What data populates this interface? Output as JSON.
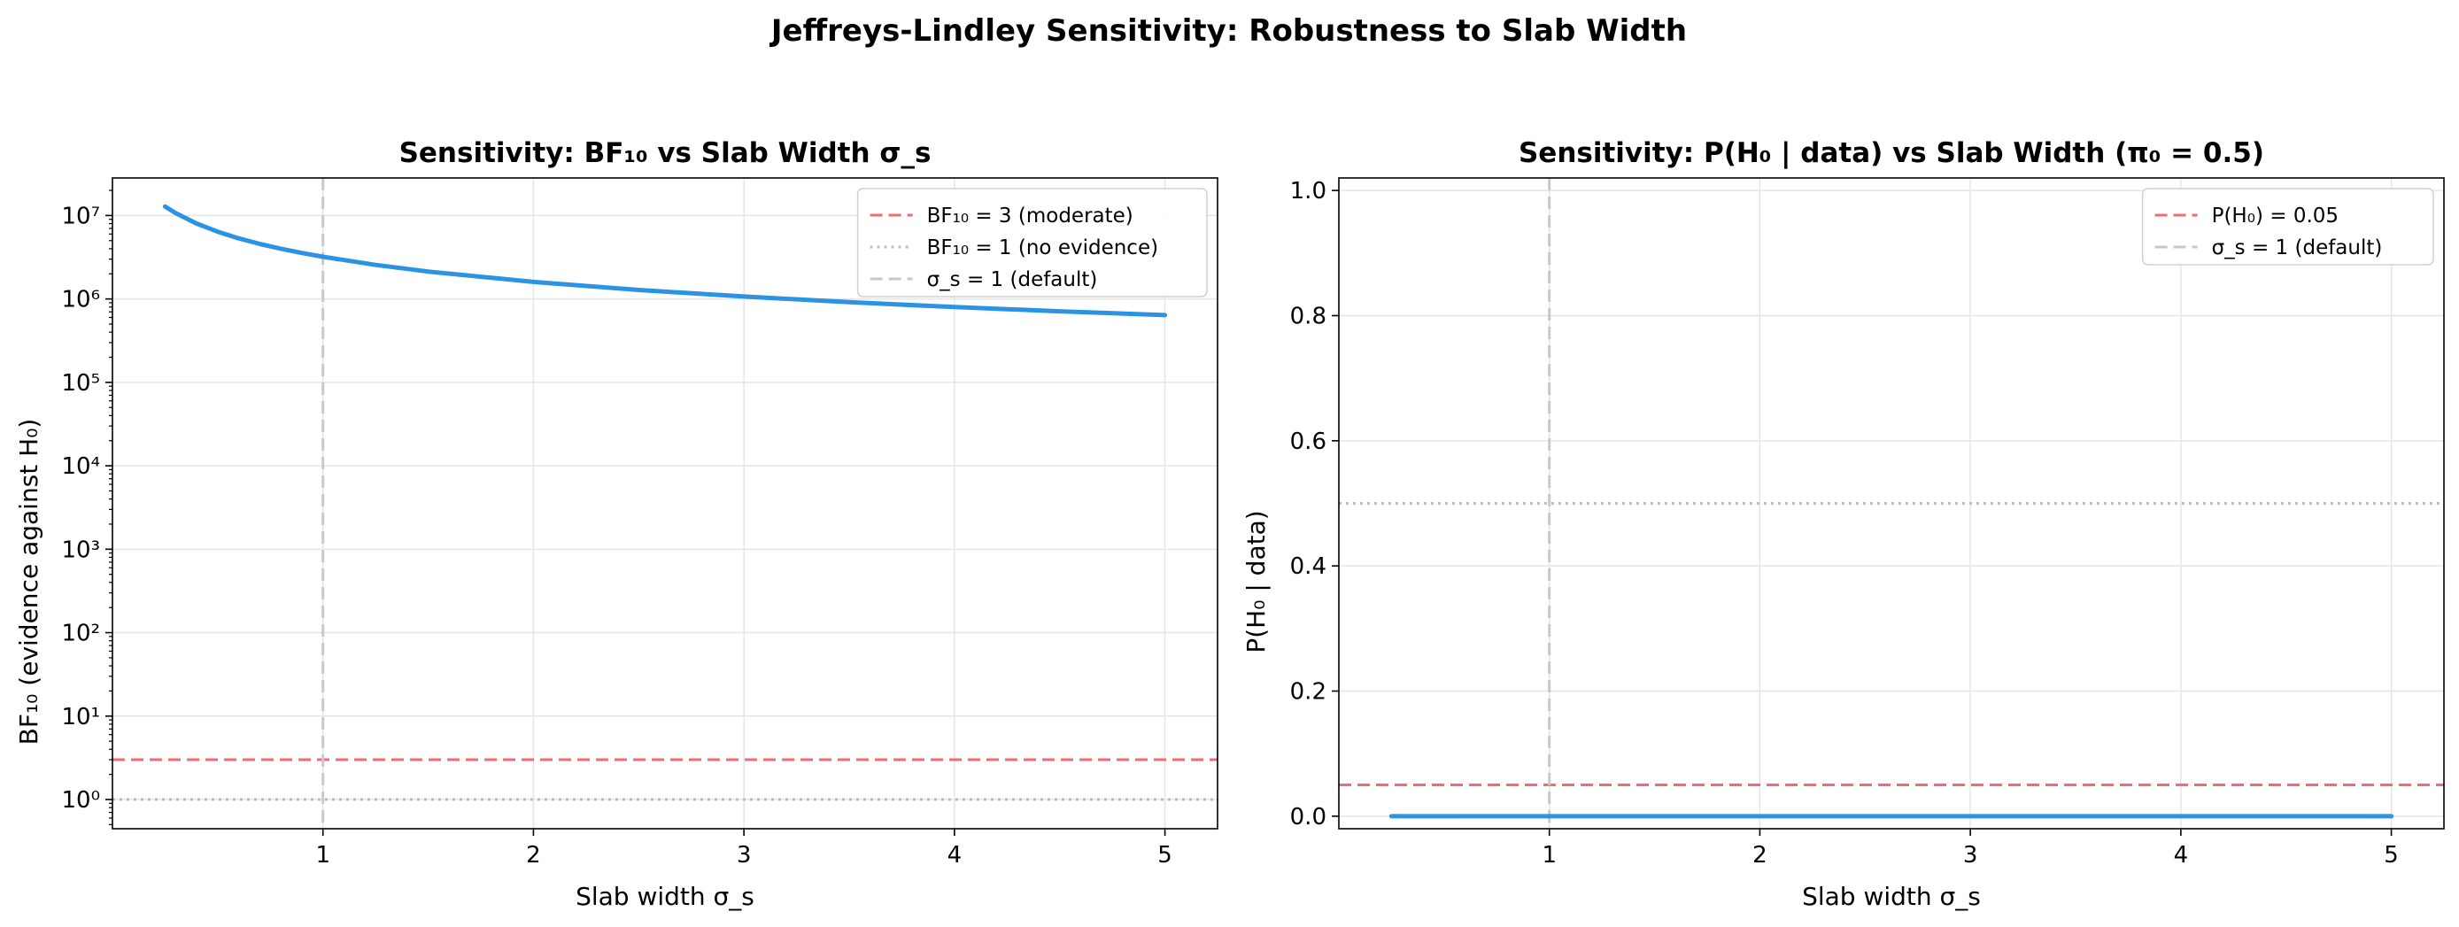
{
  "figure": {
    "suptitle": "Jeffreys-Lindley Sensitivity: Robustness to Slab Width"
  },
  "colors": {
    "curve": "#2b93e3",
    "threshold": "#f26b73",
    "reference": "#bdbdbd",
    "default_line": "#c8c8c8"
  },
  "chart_data": [
    {
      "type": "line",
      "title": "Sensitivity: BF₁₀ vs Slab Width σ_s",
      "xlabel": "Slab width σ_s",
      "ylabel": "BF₁₀ (evidence against H₀)",
      "yscale": "log",
      "xlim": [
        0.0,
        5.25
      ],
      "ylim_log10": [
        -0.35,
        7.45
      ],
      "xticks": [
        1,
        2,
        3,
        4,
        5
      ],
      "xtick_labels": [
        "1",
        "2",
        "3",
        "4",
        "5"
      ],
      "ytick_exponents": [
        0,
        1,
        2,
        3,
        4,
        5,
        6,
        7
      ],
      "grid": true,
      "legend_position": "top-right",
      "series": [
        {
          "x": [
            0.25,
            0.3,
            0.4,
            0.5,
            0.6,
            0.7,
            0.8,
            0.9,
            1.0,
            1.25,
            1.5,
            2.0,
            2.5,
            3.0,
            3.5,
            4.0,
            4.5,
            5.0
          ],
          "y": [
            12800000,
            10700000,
            8000000,
            6400000,
            5330000,
            4570000,
            4000000,
            3560000,
            3200000,
            2560000,
            2130000,
            1600000,
            1280000,
            1070000,
            914000,
            800000,
            711000,
            640000
          ]
        }
      ],
      "reference_lines": [
        {
          "orientation": "horizontal",
          "value": 3,
          "style": "dashed",
          "color": "#f26b73",
          "label": "BF₁₀ = 3 (moderate)"
        },
        {
          "orientation": "horizontal",
          "value": 1,
          "style": "dotted",
          "color": "#bdbdbd",
          "label": "BF₁₀ = 1 (no evidence)"
        },
        {
          "orientation": "vertical",
          "value": 1,
          "style": "dashed",
          "color": "#c8c8c8",
          "label": "σ_s = 1 (default)"
        }
      ]
    },
    {
      "type": "line",
      "title": "Sensitivity: P(H₀ | data) vs Slab Width (π₀ = 0.5)",
      "xlabel": "Slab width σ_s",
      "ylabel": "P(H₀ | data)",
      "yscale": "linear",
      "xlim": [
        0.0,
        5.25
      ],
      "ylim": [
        -0.02,
        1.02
      ],
      "xticks": [
        1,
        2,
        3,
        4,
        5
      ],
      "xtick_labels": [
        "1",
        "2",
        "3",
        "4",
        "5"
      ],
      "yticks": [
        0.0,
        0.2,
        0.4,
        0.6,
        0.8,
        1.0
      ],
      "ytick_labels": [
        "0.0",
        "0.2",
        "0.4",
        "0.6",
        "0.8",
        "1.0"
      ],
      "grid": true,
      "legend_position": "top-right",
      "series": [
        {
          "x": [
            0.25,
            0.5,
            1.0,
            1.5,
            2.0,
            2.5,
            3.0,
            3.5,
            4.0,
            4.5,
            5.0
          ],
          "y": [
            1e-07,
            2e-07,
            3e-07,
            5e-07,
            6e-07,
            8e-07,
            9e-07,
            1.1e-06,
            1.3e-06,
            1.4e-06,
            1.6e-06
          ]
        }
      ],
      "reference_lines": [
        {
          "orientation": "horizontal",
          "value": 0.05,
          "style": "dashed",
          "color": "#f26b73",
          "label": "P(H₀) = 0.05"
        },
        {
          "orientation": "horizontal",
          "value": 0.5,
          "style": "dotted",
          "color": "#bdbdbd",
          "label": ""
        },
        {
          "orientation": "vertical",
          "value": 1,
          "style": "dashed",
          "color": "#c8c8c8",
          "label": "σ_s = 1 (default)"
        }
      ]
    }
  ]
}
